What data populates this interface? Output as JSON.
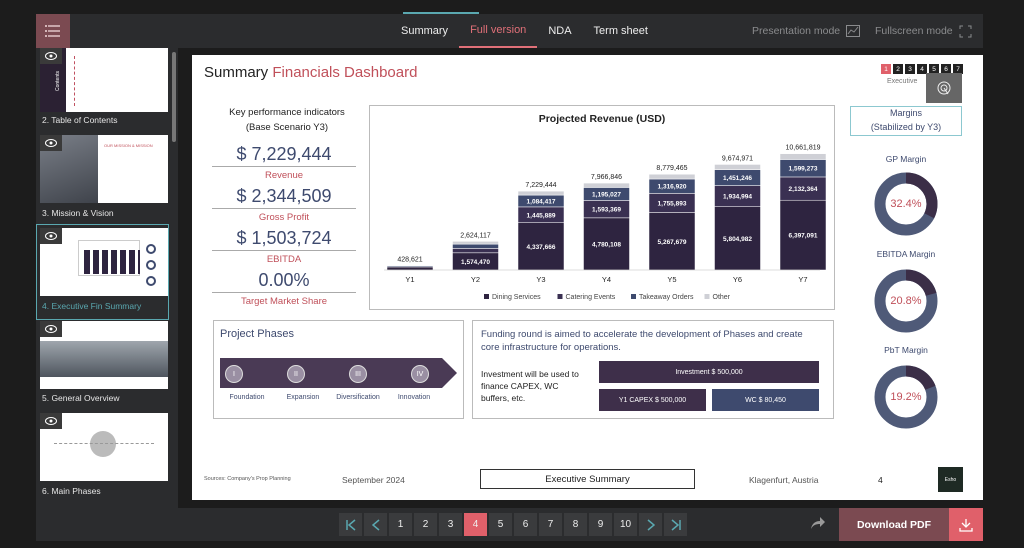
{
  "nav": {
    "tabs": [
      "Summary",
      "Full version",
      "NDA",
      "Term sheet"
    ],
    "active": 1,
    "presentation_mode": "Presentation mode",
    "fullscreen_mode": "Fullscreen mode"
  },
  "sidebar": {
    "items": [
      {
        "label": "2. Table of Contents"
      },
      {
        "label": "3. Mission & Vision"
      },
      {
        "label": "4. Executive Fin Summary"
      },
      {
        "label": "5. General Overview"
      },
      {
        "label": "6. Main Phases"
      }
    ],
    "thumb_contents_text": "Contents",
    "thumb_mission_text": "OUR MISSION & MISSION",
    "active": 2
  },
  "slide": {
    "title_a": "Summary",
    "title_b": "Financials Dashboard",
    "mini_nav": [
      "1",
      "2",
      "3",
      "4",
      "5",
      "6",
      "7"
    ],
    "mini_label": "Executive",
    "kpi_title_1": "Key performance indicators",
    "kpi_title_2": "(Base Scenario Y3)",
    "kpis": [
      {
        "value": "$ 7,229,444",
        "label": "Revenue"
      },
      {
        "value": "$ 2,344,509",
        "label": "Gross Profit"
      },
      {
        "value": "$ 1,503,724",
        "label": "EBITDA"
      },
      {
        "value": "0.00%",
        "label": "Target Market Share"
      }
    ],
    "margins_title_1": "Margins",
    "margins_title_2": "(Stabilized by Y3)",
    "margins": [
      {
        "label": "GP Margin",
        "value": "32.4%",
        "pct": 32.4
      },
      {
        "label": "EBITDA Margin",
        "value": "20.8%",
        "pct": 20.8
      },
      {
        "label": "PbT Margin",
        "value": "19.2%",
        "pct": 19.2
      }
    ],
    "phases_title": "Project Phases",
    "phases": [
      {
        "numeral": "I",
        "label": "Foundation"
      },
      {
        "numeral": "II",
        "label": "Expansion"
      },
      {
        "numeral": "III",
        "label": "Diversification"
      },
      {
        "numeral": "IV",
        "label": "Innovation"
      }
    ],
    "funding_text_1": "Funding round is aimed to accelerate the development of Phases and create",
    "funding_text_2": "core infrastructure for operations.",
    "invest_text_1": "Investment will be used to",
    "invest_text_2": "finance CAPEX, WC",
    "invest_text_3": "buffers, etc.",
    "invest_total": "Investment $ 500,000",
    "invest_capex": "Y1 CAPEX $ 500,000",
    "invest_wc": "WC $ 80,450",
    "footer_source": "Sources: Company's Prop Planning",
    "footer_date": "September 2024",
    "footer_center": "Executive Summary",
    "footer_place": "Klagenfurt, Austria",
    "footer_page": "4",
    "footer_logo": "Esho"
  },
  "chart_data": {
    "type": "bar",
    "title": "Projected Revenue (USD)",
    "categories": [
      "Y1",
      "Y2",
      "Y3",
      "Y4",
      "Y5",
      "Y6",
      "Y7"
    ],
    "totals": [
      "428,621",
      "2,624,117",
      "7,229,444",
      "7,966,846",
      "8,779,465",
      "9,674,971",
      "10,661,819"
    ],
    "total_values": [
      428621,
      2624117,
      7229444,
      7966846,
      8779465,
      9674971,
      10661819
    ],
    "series": [
      {
        "name": "Dining Services",
        "values": [
          280000,
          1574470,
          4337666,
          4780108,
          5267679,
          5804982,
          6397091
        ],
        "labels": [
          "",
          "1,574,470",
          "4,337,666",
          "4,780,108",
          "5,267,679",
          "5,804,982",
          "6,397,091"
        ],
        "color": "#2e2440"
      },
      {
        "name": "Catering Events",
        "values": [
          0,
          400000,
          1445889,
          1593369,
          1755893,
          1934994,
          2132364
        ],
        "labels": [
          "",
          "",
          "1,445,889",
          "1,593,369",
          "1,755,893",
          "1,934,994",
          "2,132,364"
        ],
        "color": "#3a3052"
      },
      {
        "name": "Takeaway Orders",
        "values": [
          100000,
          400000,
          1084417,
          1195027,
          1316920,
          1451246,
          1599273
        ],
        "labels": [
          "",
          "",
          "1,084,417",
          "1,195,027",
          "1,316,920",
          "1,451,246",
          "1,599,273"
        ],
        "color": "#3e4a6e"
      },
      {
        "name": "Other",
        "values": [
          48621,
          249647,
          361472,
          398342,
          438973,
          483749,
          533091
        ],
        "color": "#cfd0d6"
      }
    ],
    "ylim": [
      0,
      11000000
    ],
    "legend": "bottom"
  },
  "pager": {
    "pages": [
      "1",
      "2",
      "3",
      "4",
      "5",
      "6",
      "7",
      "8",
      "9",
      "10"
    ],
    "active": 3
  },
  "download_label": "Download PDF",
  "colors": {
    "accent": "#e0606a",
    "brand": "#7b4a51",
    "navy": "#3e4a6e"
  }
}
